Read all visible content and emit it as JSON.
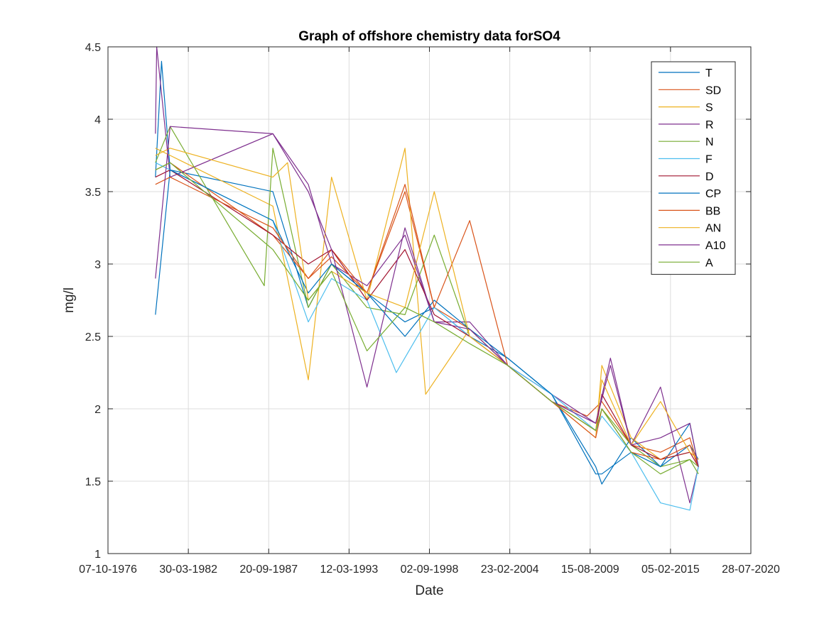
{
  "chart_data": {
    "type": "line",
    "title": "Graph of offshore chemistry data forSO4",
    "xlabel": "Date",
    "ylabel": "mg/l",
    "xlim": [
      "1976-10-07",
      "2020-07-28"
    ],
    "ylim": [
      1,
      4.5
    ],
    "x_ticks": [
      "07-10-1976",
      "30-03-1982",
      "20-09-1987",
      "12-03-1993",
      "02-09-1998",
      "23-02-2004",
      "15-08-2009",
      "05-02-2015",
      "28-07-2020"
    ],
    "y_ticks": [
      "1",
      "1.5",
      "2",
      "2.5",
      "3",
      "3.5",
      "4",
      "4.5"
    ],
    "grid": true,
    "legend_position": "top-right",
    "series": [
      {
        "name": "T",
        "color": "#0072bd",
        "x": [
          "1980-01-01",
          "1980-06-01",
          "1981-01-01",
          "1988-01-01",
          "1990-06-01",
          "1992-01-01",
          "1994-06-01",
          "1997-01-01",
          "1999-01-01",
          "2001-06-01",
          "2004-01-01",
          "2007-01-01",
          "2010-01-01",
          "2010-06-01",
          "2012-06-01",
          "2014-06-01",
          "2016-06-01",
          "2017-01-01"
        ],
        "y": [
          3.6,
          4.4,
          3.65,
          3.5,
          2.7,
          3.0,
          2.8,
          2.6,
          2.7,
          2.5,
          2.35,
          2.1,
          1.6,
          1.48,
          1.8,
          1.6,
          1.75,
          1.65
        ]
      },
      {
        "name": "SD",
        "color": "#d95319",
        "x": [
          "1980-01-01",
          "1981-01-01",
          "1988-01-01",
          "1990-06-01",
          "1992-01-01",
          "1994-06-01",
          "1997-01-01",
          "1999-01-01",
          "2001-06-01",
          "2004-01-01",
          "2007-01-01",
          "2009-06-01",
          "2010-06-01",
          "2012-06-01",
          "2014-06-01",
          "2016-06-01",
          "2017-01-01"
        ],
        "y": [
          3.65,
          3.7,
          3.2,
          2.9,
          3.1,
          2.8,
          3.5,
          2.7,
          2.55,
          2.3,
          2.05,
          1.95,
          2.05,
          1.75,
          1.7,
          1.8,
          1.6
        ]
      },
      {
        "name": "S",
        "color": "#edb120",
        "x": [
          "1980-01-01",
          "1981-01-01",
          "1988-01-01",
          "1990-06-01",
          "1992-01-01",
          "1994-06-01",
          "1997-01-01",
          "1998-06-01",
          "2001-06-01",
          "2004-01-01",
          "2007-01-01",
          "2010-01-01",
          "2010-06-01",
          "2012-06-01",
          "2014-06-01",
          "2016-06-01",
          "2017-01-01"
        ],
        "y": [
          3.8,
          3.75,
          3.4,
          2.2,
          3.6,
          2.75,
          3.8,
          2.1,
          2.55,
          2.3,
          2.05,
          1.8,
          2.3,
          1.8,
          1.65,
          1.7,
          1.65
        ]
      },
      {
        "name": "R",
        "color": "#7e2f8e",
        "x": [
          "1980-01-01",
          "1980-02-01",
          "1981-01-01",
          "1988-01-01",
          "1990-06-01",
          "1992-01-01",
          "1994-06-01",
          "1997-01-01",
          "1999-01-01",
          "2001-06-01",
          "2004-01-01",
          "2007-01-01",
          "2010-01-01",
          "2011-01-01",
          "2012-06-01",
          "2014-06-01",
          "2016-06-01",
          "2017-01-01"
        ],
        "y": [
          3.9,
          4.5,
          3.6,
          3.9,
          3.55,
          3.0,
          2.85,
          3.2,
          2.6,
          2.6,
          2.3,
          2.1,
          1.9,
          2.3,
          1.75,
          2.15,
          1.35,
          1.6
        ]
      },
      {
        "name": "N",
        "color": "#77ac30",
        "x": [
          "1980-01-01",
          "1981-01-01",
          "1987-06-01",
          "1988-01-01",
          "1990-06-01",
          "1992-01-01",
          "1994-06-01",
          "1997-01-01",
          "1999-01-01",
          "2001-06-01",
          "2004-01-01",
          "2007-01-01",
          "2010-01-01",
          "2010-06-01",
          "2012-06-01",
          "2014-06-01",
          "2016-06-01",
          "2017-01-01"
        ],
        "y": [
          3.7,
          3.95,
          2.85,
          3.8,
          2.7,
          3.0,
          2.7,
          2.65,
          3.2,
          2.5,
          2.3,
          2.05,
          1.85,
          2.0,
          1.75,
          1.6,
          1.65,
          1.6
        ]
      },
      {
        "name": "F",
        "color": "#4dbeee",
        "x": [
          "1980-01-01",
          "1981-01-01",
          "1988-01-01",
          "1990-06-01",
          "1992-01-01",
          "1994-06-01",
          "1996-06-01",
          "1999-01-01",
          "2001-06-01",
          "2004-01-01",
          "2007-01-01",
          "2010-01-01",
          "2010-06-01",
          "2012-06-01",
          "2014-06-01",
          "2016-06-01",
          "2017-01-01"
        ],
        "y": [
          3.7,
          3.65,
          3.3,
          2.6,
          2.9,
          2.75,
          2.25,
          2.7,
          2.5,
          2.3,
          2.1,
          1.85,
          1.95,
          1.7,
          1.35,
          1.3,
          1.6
        ]
      },
      {
        "name": "D",
        "color": "#a2142f",
        "x": [
          "1980-01-01",
          "1981-01-01",
          "1988-01-01",
          "1990-06-01",
          "1992-01-01",
          "1994-06-01",
          "1997-01-01",
          "1999-01-01",
          "2001-06-01",
          "2004-01-01",
          "2007-01-01",
          "2010-01-01",
          "2010-06-01",
          "2012-06-01",
          "2014-06-01",
          "2016-06-01",
          "2017-01-01"
        ],
        "y": [
          3.6,
          3.65,
          3.2,
          3.0,
          3.1,
          2.75,
          3.1,
          2.65,
          2.5,
          2.3,
          2.05,
          1.85,
          2.1,
          1.75,
          1.65,
          1.7,
          1.6
        ]
      },
      {
        "name": "CP",
        "color": "#0072bd",
        "x": [
          "1980-01-01",
          "1981-01-01",
          "1988-01-01",
          "1990-06-01",
          "1992-01-01",
          "1994-06-01",
          "1997-01-01",
          "1999-01-01",
          "2001-06-01",
          "2004-01-01",
          "2007-01-01",
          "2010-01-01",
          "2010-06-01",
          "2012-06-01",
          "2014-06-01",
          "2016-06-01",
          "2017-01-01"
        ],
        "y": [
          2.65,
          3.65,
          3.3,
          2.8,
          3.0,
          2.8,
          2.5,
          2.75,
          2.55,
          2.35,
          2.1,
          1.55,
          1.55,
          1.7,
          1.6,
          1.9,
          1.6
        ]
      },
      {
        "name": "BB",
        "color": "#d95319",
        "x": [
          "1980-01-01",
          "1981-01-01",
          "1988-01-01",
          "1990-06-01",
          "1992-01-01",
          "1994-06-01",
          "1997-01-01",
          "1999-01-01",
          "2001-06-01",
          "2004-01-01",
          "2007-01-01",
          "2010-01-01",
          "2010-06-01",
          "2012-06-01",
          "2014-06-01",
          "2016-06-01",
          "2017-01-01"
        ],
        "y": [
          3.55,
          3.6,
          3.25,
          2.9,
          3.05,
          2.8,
          3.55,
          2.7,
          3.3,
          2.3,
          2.05,
          1.8,
          2.0,
          1.7,
          1.65,
          1.75,
          1.6
        ]
      },
      {
        "name": "AN",
        "color": "#edb120",
        "x": [
          "1980-01-01",
          "1981-01-01",
          "1988-01-01",
          "1989-01-01",
          "1990-06-01",
          "1992-01-01",
          "1994-06-01",
          "1997-01-01",
          "1999-01-01",
          "2001-06-01",
          "2004-01-01",
          "2007-01-01",
          "2010-01-01",
          "2010-06-01",
          "2012-06-01",
          "2014-06-01",
          "2016-06-01",
          "2017-01-01"
        ],
        "y": [
          3.75,
          3.8,
          3.6,
          3.7,
          2.75,
          2.95,
          2.8,
          2.7,
          3.5,
          2.5,
          2.3,
          2.05,
          1.85,
          2.2,
          1.75,
          2.05,
          1.7,
          1.65
        ]
      },
      {
        "name": "A10",
        "color": "#7e2f8e",
        "x": [
          "1980-01-01",
          "1981-01-01",
          "1988-01-01",
          "1990-06-01",
          "1992-01-01",
          "1994-06-01",
          "1997-01-01",
          "1999-01-01",
          "2001-06-01",
          "2004-01-01",
          "2007-01-01",
          "2010-01-01",
          "2011-01-01",
          "2012-06-01",
          "2014-06-01",
          "2016-06-01",
          "2017-01-01"
        ],
        "y": [
          2.9,
          3.95,
          3.9,
          3.5,
          3.1,
          2.15,
          3.25,
          2.6,
          2.55,
          2.3,
          2.05,
          1.9,
          2.35,
          1.75,
          1.8,
          1.9,
          1.6
        ]
      },
      {
        "name": "A",
        "color": "#77ac30",
        "x": [
          "1980-01-01",
          "1981-01-01",
          "1988-01-01",
          "1990-06-01",
          "1992-01-01",
          "1994-06-01",
          "1997-01-01",
          "1999-01-01",
          "2001-06-01",
          "2004-01-01",
          "2007-01-01",
          "2010-01-01",
          "2010-06-01",
          "2012-06-01",
          "2014-06-01",
          "2016-06-01",
          "2017-01-01"
        ],
        "y": [
          3.65,
          3.7,
          3.1,
          2.75,
          2.95,
          2.4,
          2.7,
          2.6,
          2.45,
          2.3,
          2.05,
          1.85,
          2.0,
          1.7,
          1.55,
          1.65,
          1.55
        ]
      }
    ]
  }
}
